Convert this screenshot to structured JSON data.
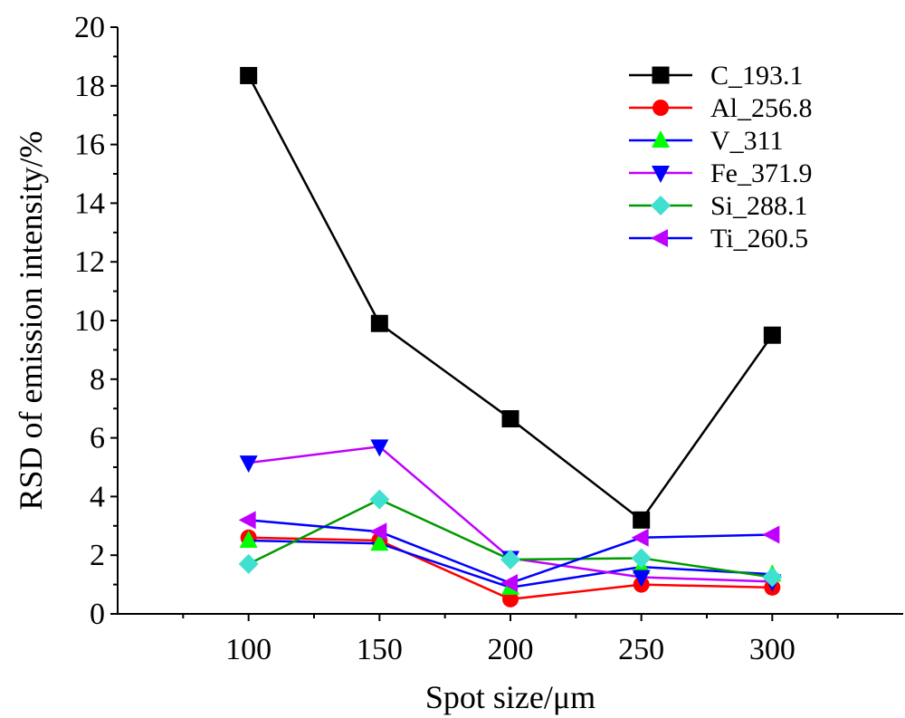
{
  "chart_data": {
    "type": "line",
    "title": "",
    "xlabel": "Spot size/μm",
    "ylabel": "RSD of emission intensity/%",
    "x": [
      100,
      150,
      200,
      250,
      300
    ],
    "xlim": [
      50,
      350
    ],
    "ylim": [
      0,
      20
    ],
    "xticks": [
      100,
      150,
      200,
      250,
      300
    ],
    "yticks": [
      0,
      2,
      4,
      6,
      8,
      10,
      12,
      14,
      16,
      18,
      20
    ],
    "grid": false,
    "legend_position": "top-right",
    "series": [
      {
        "name": "C_193.1",
        "color": "#000000",
        "marker": "square",
        "marker_color": "#000000",
        "values": [
          18.35,
          9.9,
          6.65,
          3.2,
          9.5
        ]
      },
      {
        "name": "Al_256.8",
        "color": "#ff0000",
        "marker": "circle",
        "marker_color": "#ff0000",
        "values": [
          2.6,
          2.5,
          0.5,
          1.0,
          0.9
        ]
      },
      {
        "name": "V_311",
        "color": "#0000ff",
        "marker": "triangle-up",
        "marker_color": "#00ff00",
        "values": [
          2.5,
          2.4,
          0.9,
          1.6,
          1.35
        ]
      },
      {
        "name": "Fe_371.9",
        "color": "#bf00ff",
        "marker": "triangle-down",
        "marker_color": "#0000ff",
        "values": [
          5.15,
          5.7,
          1.9,
          1.25,
          1.1
        ]
      },
      {
        "name": "Si_288.1",
        "color": "#009900",
        "marker": "diamond",
        "marker_color": "#40e0d0",
        "values": [
          1.7,
          3.9,
          1.85,
          1.9,
          1.25
        ]
      },
      {
        "name": "Ti_260.5",
        "color": "#0000ff",
        "marker": "triangle-left",
        "marker_color": "#bf00ff",
        "values": [
          3.2,
          2.8,
          1.05,
          2.6,
          2.7
        ]
      }
    ]
  }
}
